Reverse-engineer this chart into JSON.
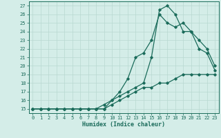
{
  "xlabel": "Humidex (Indice chaleur)",
  "bg_color": "#d4ede8",
  "line_color": "#1a6b5a",
  "grid_color": "#b8d8d0",
  "xlim": [
    -0.5,
    23.5
  ],
  "ylim": [
    14.5,
    27.5
  ],
  "xticks": [
    0,
    1,
    2,
    3,
    4,
    5,
    6,
    7,
    8,
    9,
    10,
    11,
    12,
    13,
    14,
    15,
    16,
    17,
    18,
    19,
    20,
    21,
    22,
    23
  ],
  "yticks": [
    15,
    16,
    17,
    18,
    19,
    20,
    21,
    22,
    23,
    24,
    25,
    26,
    27
  ],
  "series1_x": [
    0,
    1,
    2,
    3,
    4,
    5,
    6,
    7,
    8,
    9,
    10,
    11,
    12,
    13,
    14,
    15,
    16,
    17,
    18,
    19,
    20,
    21,
    22,
    23
  ],
  "series1_y": [
    15,
    15,
    15,
    15,
    15,
    15,
    15,
    15,
    15,
    15,
    15.5,
    16,
    16.5,
    17,
    17.5,
    17.5,
    18,
    18,
    18.5,
    19,
    19,
    19,
    19,
    19
  ],
  "series2_x": [
    0,
    1,
    2,
    3,
    4,
    5,
    6,
    7,
    8,
    9,
    10,
    11,
    12,
    13,
    14,
    15,
    16,
    17,
    18,
    19,
    20,
    21,
    22,
    23
  ],
  "series2_y": [
    15,
    15,
    15,
    15,
    15,
    15,
    15,
    15,
    15,
    15.5,
    16,
    17,
    18.5,
    21,
    21.5,
    23,
    26,
    25,
    24.5,
    25,
    24,
    22,
    21.5,
    19.5
  ],
  "series3_x": [
    0,
    1,
    2,
    3,
    4,
    5,
    6,
    7,
    8,
    9,
    10,
    11,
    12,
    13,
    14,
    15,
    16,
    17,
    18,
    19,
    20,
    21,
    22,
    23
  ],
  "series3_y": [
    15,
    15,
    15,
    15,
    15,
    15,
    15,
    15,
    15,
    15,
    16,
    16.5,
    17,
    17.5,
    18,
    21,
    26.5,
    27,
    26,
    24,
    24,
    23,
    22,
    20
  ],
  "marker": "D",
  "marker_size": 1.8,
  "line_width": 0.9,
  "tick_fontsize": 5.0,
  "xlabel_fontsize": 6.0
}
